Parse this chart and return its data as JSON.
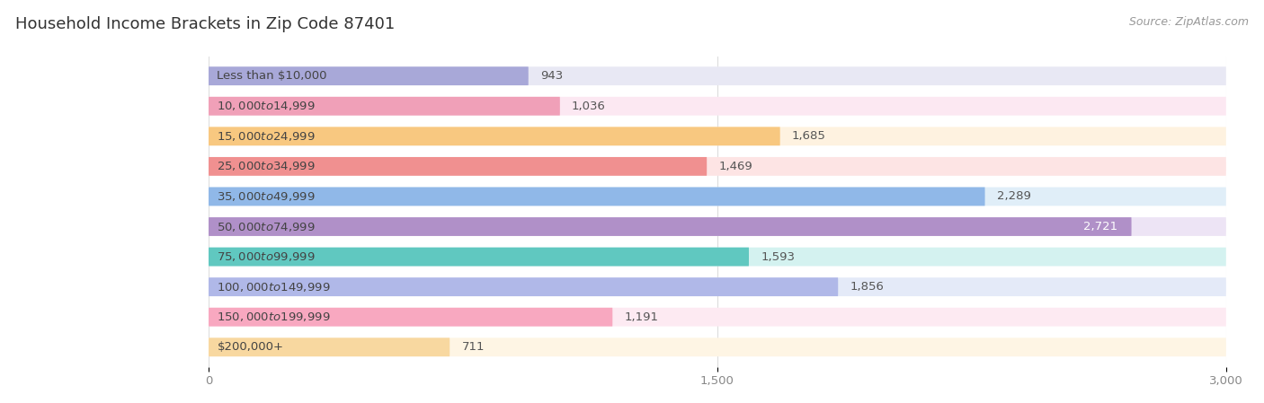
{
  "title": "Household Income Brackets in Zip Code 87401",
  "source": "Source: ZipAtlas.com",
  "categories": [
    "Less than $10,000",
    "$10,000 to $14,999",
    "$15,000 to $24,999",
    "$25,000 to $34,999",
    "$35,000 to $49,999",
    "$50,000 to $74,999",
    "$75,000 to $99,999",
    "$100,000 to $149,999",
    "$150,000 to $199,999",
    "$200,000+"
  ],
  "values": [
    943,
    1036,
    1685,
    1469,
    2289,
    2721,
    1593,
    1856,
    1191,
    711
  ],
  "bar_colors": [
    "#a8a8d8",
    "#f0a0b8",
    "#f8c880",
    "#f09090",
    "#90b8e8",
    "#b090c8",
    "#60c8c0",
    "#b0b8e8",
    "#f8a8c0",
    "#f8d8a0"
  ],
  "bar_bg_colors": [
    "#e8e8f4",
    "#fce8f2",
    "#fef2e0",
    "#fde4e4",
    "#e0eef8",
    "#ede4f5",
    "#d4f2f0",
    "#e4eaf8",
    "#fdeaf2",
    "#fef5e4"
  ],
  "xlim": [
    0,
    3000
  ],
  "xticks": [
    0,
    1500,
    3000
  ],
  "xticklabels": [
    "0",
    "1,500",
    "3,000"
  ],
  "background_color": "#ffffff",
  "title_fontsize": 13,
  "label_fontsize": 9.5,
  "value_fontsize": 9.5
}
